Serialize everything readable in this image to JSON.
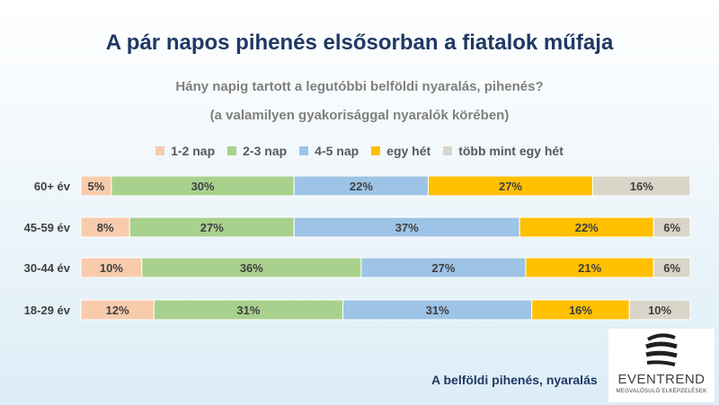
{
  "header": {
    "title": "A pár napos pihenés elsősorban a fiatalok műfaja",
    "subtitle1": "Hány napig tartott a legutóbbi belföldi nyaralás, pihenés?",
    "subtitle2": "(a valamilyen gyakorisággal nyaralók körében)"
  },
  "footer": {
    "text": "A belföldi pihenés, nyaralás"
  },
  "logo": {
    "name": "EVENTREND",
    "tagline": "MEGVALÓSULÓ ELKÉPZELÉSEK"
  },
  "chart_data": {
    "type": "bar",
    "orientation": "horizontal",
    "stacked": true,
    "categories": [
      "60+ év",
      "45-59 év",
      "30-44 év",
      "18-29 év"
    ],
    "series": [
      {
        "name": "1-2 nap",
        "color": "#f8cbad",
        "values": [
          5,
          8,
          10,
          12
        ],
        "labels": [
          "5%",
          "8%",
          "10%",
          "12%"
        ]
      },
      {
        "name": "2-3 nap",
        "color": "#a9d18e",
        "values": [
          30,
          27,
          36,
          31
        ],
        "labels": [
          "30%",
          "27%",
          "36%",
          "31%"
        ]
      },
      {
        "name": "4-5 nap",
        "color": "#9dc3e6",
        "values": [
          22,
          37,
          27,
          31
        ],
        "labels": [
          "22%",
          "37%",
          "27%",
          "31%"
        ]
      },
      {
        "name": "egy hét",
        "color": "#ffc000",
        "values": [
          27,
          22,
          21,
          16
        ],
        "labels": [
          "27%",
          "22%",
          "21%",
          "16%"
        ]
      },
      {
        "name": "több mint egy hét",
        "color": "#d9d5c8",
        "values": [
          16,
          6,
          6,
          10
        ],
        "labels": [
          "16%",
          "6%",
          "6%",
          "10%"
        ]
      }
    ],
    "legend_position": "top"
  }
}
